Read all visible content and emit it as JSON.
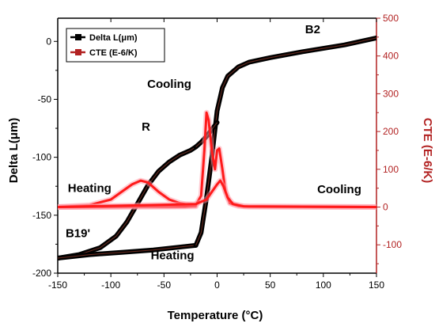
{
  "chart_data": {
    "type": "line",
    "xlabel": "Temperature (°C)",
    "ylabel_left": "Delta L(μm)",
    "ylabel_right": "CTE (E-6/K)",
    "xlim": [
      -150,
      150
    ],
    "ylim_left": [
      -200,
      20
    ],
    "ylim_right": [
      -175,
      500
    ],
    "x_ticks": [
      -150,
      -100,
      -50,
      0,
      50,
      100,
      150
    ],
    "y_left_ticks": [
      -200,
      -150,
      -100,
      -50,
      0
    ],
    "y_right_ticks": [
      -100,
      0,
      100,
      200,
      300,
      400,
      500
    ],
    "legend": {
      "placement": "top-left",
      "entries": [
        {
          "label": "Delta L(μm)",
          "color": "#000000"
        },
        {
          "label": "CTE (E-6/K)",
          "color": "#b22222"
        }
      ]
    },
    "annotations": [
      {
        "text": "B2",
        "x": 90,
        "y": 7
      },
      {
        "text": "Cooling",
        "x": -45,
        "y": -40
      },
      {
        "text": "R",
        "x": -67,
        "y": -77
      },
      {
        "text": "Heating",
        "x": -120,
        "y": -130
      },
      {
        "text": "Cooling",
        "x": 115,
        "y": -131
      },
      {
        "text": "B19'",
        "x": -131,
        "y": -169
      },
      {
        "text": "Heating",
        "x": -42,
        "y": -188
      }
    ],
    "series": [
      {
        "name": "Delta L(μm)",
        "axis": "left",
        "color": "#000000",
        "segments": [
          {
            "x": [
              -150,
              -130,
              -110,
              -95,
              -85,
              -75,
              -65,
              -55,
              -45,
              -35,
              -25,
              -20
            ],
            "y": [
              -187,
              -184,
              -178,
              -168,
              -156,
              -140,
              -124,
              -112,
              -104,
              -98,
              -94,
              -91
            ]
          },
          {
            "x": [
              -150,
              -120,
              -90,
              -60,
              -30,
              -20
            ],
            "y": [
              -187,
              -184,
              -182,
              -180,
              -177,
              -176
            ]
          },
          {
            "x": [
              -20,
              -15,
              -10,
              -5,
              0,
              5,
              10,
              20,
              30,
              50,
              80,
              100,
              120,
              150
            ],
            "y": [
              -176,
              -165,
              -135,
              -100,
              -60,
              -40,
              -30,
              -22,
              -18,
              -14,
              -9,
              -6,
              -3,
              3
            ]
          },
          {
            "x": [
              -20,
              -15,
              -10,
              -5,
              0
            ],
            "y": [
              -91,
              -87,
              -82,
              -76,
              -70
            ]
          }
        ]
      },
      {
        "name": "CTE (E-6/K)",
        "axis": "right",
        "color": "#b22222",
        "segments": [
          {
            "x": [
              -150,
              -120,
              -100,
              -90,
              -80,
              -72,
              -65,
              -55,
              -45,
              -35,
              -25,
              -20,
              -150
            ],
            "y": [
              0,
              5,
              20,
              40,
              60,
              70,
              65,
              40,
              20,
              10,
              5,
              2,
              0
            ]
          },
          {
            "x": [
              -150,
              -30,
              -20,
              -15,
              -12,
              -10,
              -8,
              -5,
              -2,
              0,
              2,
              5,
              8,
              12,
              20,
              30,
              150
            ],
            "y": [
              0,
              2,
              5,
              30,
              150,
              250,
              230,
              150,
              100,
              150,
              155,
              100,
              40,
              10,
              3,
              1,
              0
            ]
          },
          {
            "x": [
              -150,
              -20,
              -10,
              -5,
              0,
              3,
              6,
              10,
              15,
              25,
              150
            ],
            "y": [
              0,
              8,
              20,
              40,
              60,
              70,
              55,
              25,
              8,
              2,
              0
            ]
          }
        ]
      }
    ]
  }
}
